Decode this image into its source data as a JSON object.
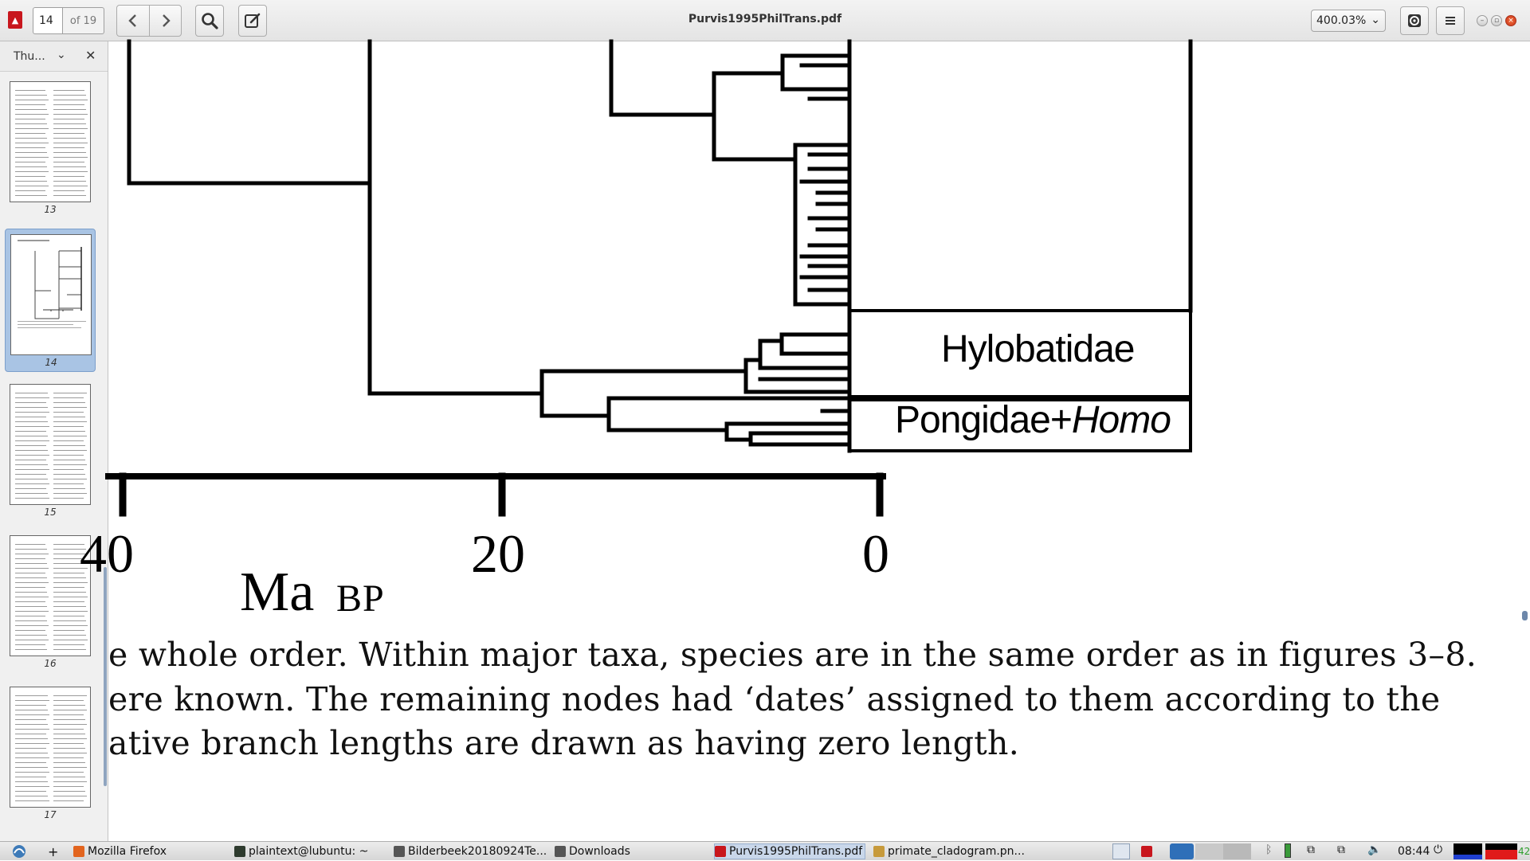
{
  "toolbar": {
    "page_number": "14",
    "page_total": "of 19",
    "back_icon": "chevron-left-icon",
    "forward_icon": "chevron-right-icon",
    "search_icon": "magnifier-icon",
    "annotate_icon": "pencil-square-icon",
    "title": "Purvis1995PhilTrans.pdf",
    "zoom": "400.03%",
    "settings_icon": "gear-icon",
    "menu_icon": "hamburger-icon"
  },
  "sidebar": {
    "view": "Thu...",
    "thumbnails": [
      {
        "label": "13",
        "selected": false
      },
      {
        "label": "14",
        "selected": true
      },
      {
        "label": "15",
        "selected": false
      },
      {
        "label": "16",
        "selected": false
      },
      {
        "label": "17",
        "selected": false
      }
    ]
  },
  "figure": {
    "labels": {
      "hylobatidae": "Hylobatidae",
      "pongidae": "Pongidae+",
      "homo": "Homo"
    },
    "axis_ticks": [
      "40",
      "20",
      "0"
    ],
    "axis_unit": "Ma",
    "axis_unit_suffix": "BP"
  },
  "caption_lines": [
    "e whole order. Within major taxa, species are in the same order as in figures 3–8.",
    "ere known. The remaining nodes had ‘dates’ assigned to them according to the",
    "ative branch lengths are drawn as having zero length."
  ],
  "taskbar": {
    "items": [
      {
        "label": "Mozilla Firefox",
        "active": false
      },
      {
        "label": "plaintext@lubuntu: ~",
        "active": false
      },
      {
        "label": "Bilderbeek20180924Te...",
        "active": false
      },
      {
        "label": "Downloads",
        "active": false
      },
      {
        "label": "Purvis1995PhilTrans.pdf",
        "active": true
      },
      {
        "label": "primate_cladogram.pn...",
        "active": false
      }
    ],
    "clock": "08:44",
    "battery_text": "42"
  },
  "colors": {
    "accent": "#a9c4e4",
    "close_button": "#e05a2b",
    "pdf_red": "#c8161d"
  }
}
